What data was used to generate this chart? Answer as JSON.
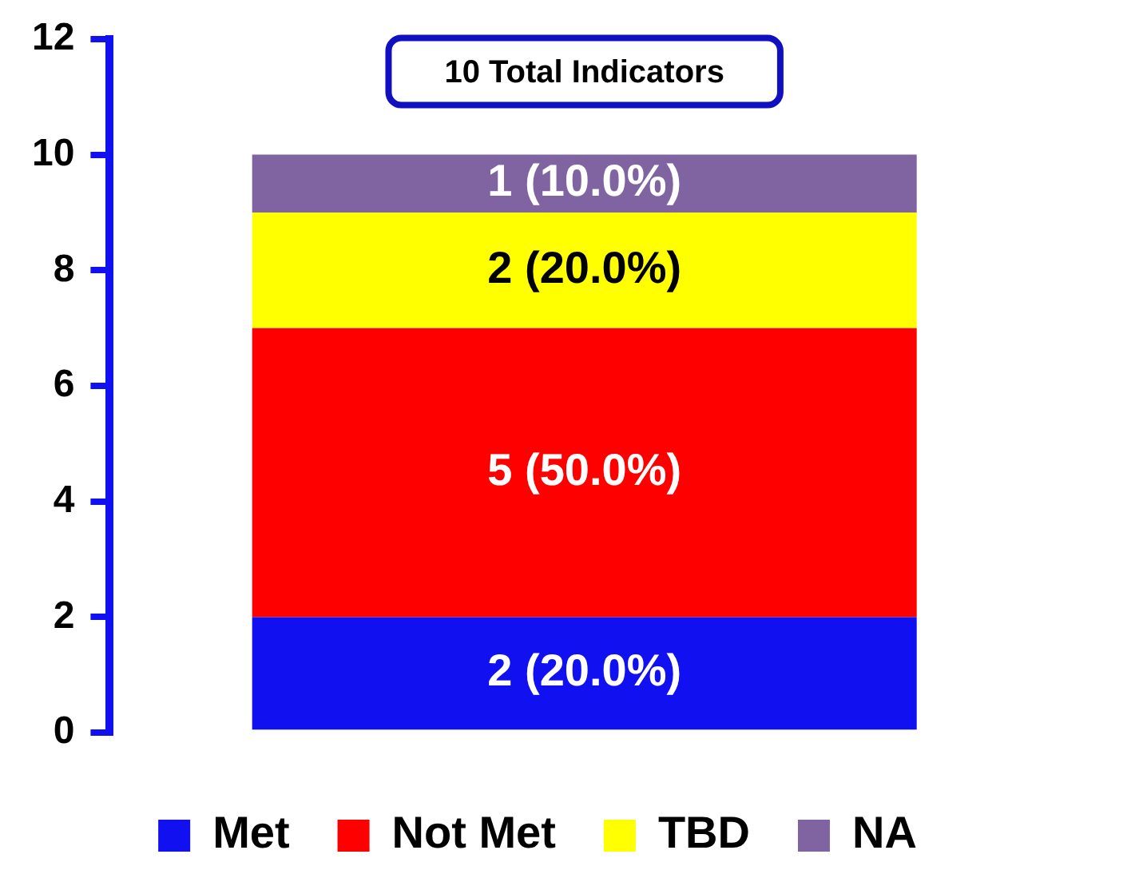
{
  "chart_data": {
    "type": "bar",
    "stacked": true,
    "categories": [
      null
    ],
    "series": [
      {
        "name": "Met",
        "color": "#1010f0",
        "values": [
          2
        ],
        "value_labels": [
          "2 (20.0%)"
        ]
      },
      {
        "name": "Not Met",
        "color": "#ff0000",
        "values": [
          5
        ],
        "value_labels": [
          "5 (50.0%)"
        ]
      },
      {
        "name": "TBD",
        "color": "#ffff00",
        "values": [
          2
        ],
        "value_labels": [
          "2 (20.0%)"
        ]
      },
      {
        "name": "NA",
        "color": "#8064a2",
        "values": [
          1
        ],
        "value_labels": [
          "1 (10.0%)"
        ]
      }
    ],
    "totals": [
      "10 Total Indicators"
    ],
    "ylim": [
      0,
      12
    ],
    "yticks": [
      0,
      2,
      4,
      6,
      8,
      10,
      12
    ],
    "grid": false,
    "legend": "bottom"
  }
}
